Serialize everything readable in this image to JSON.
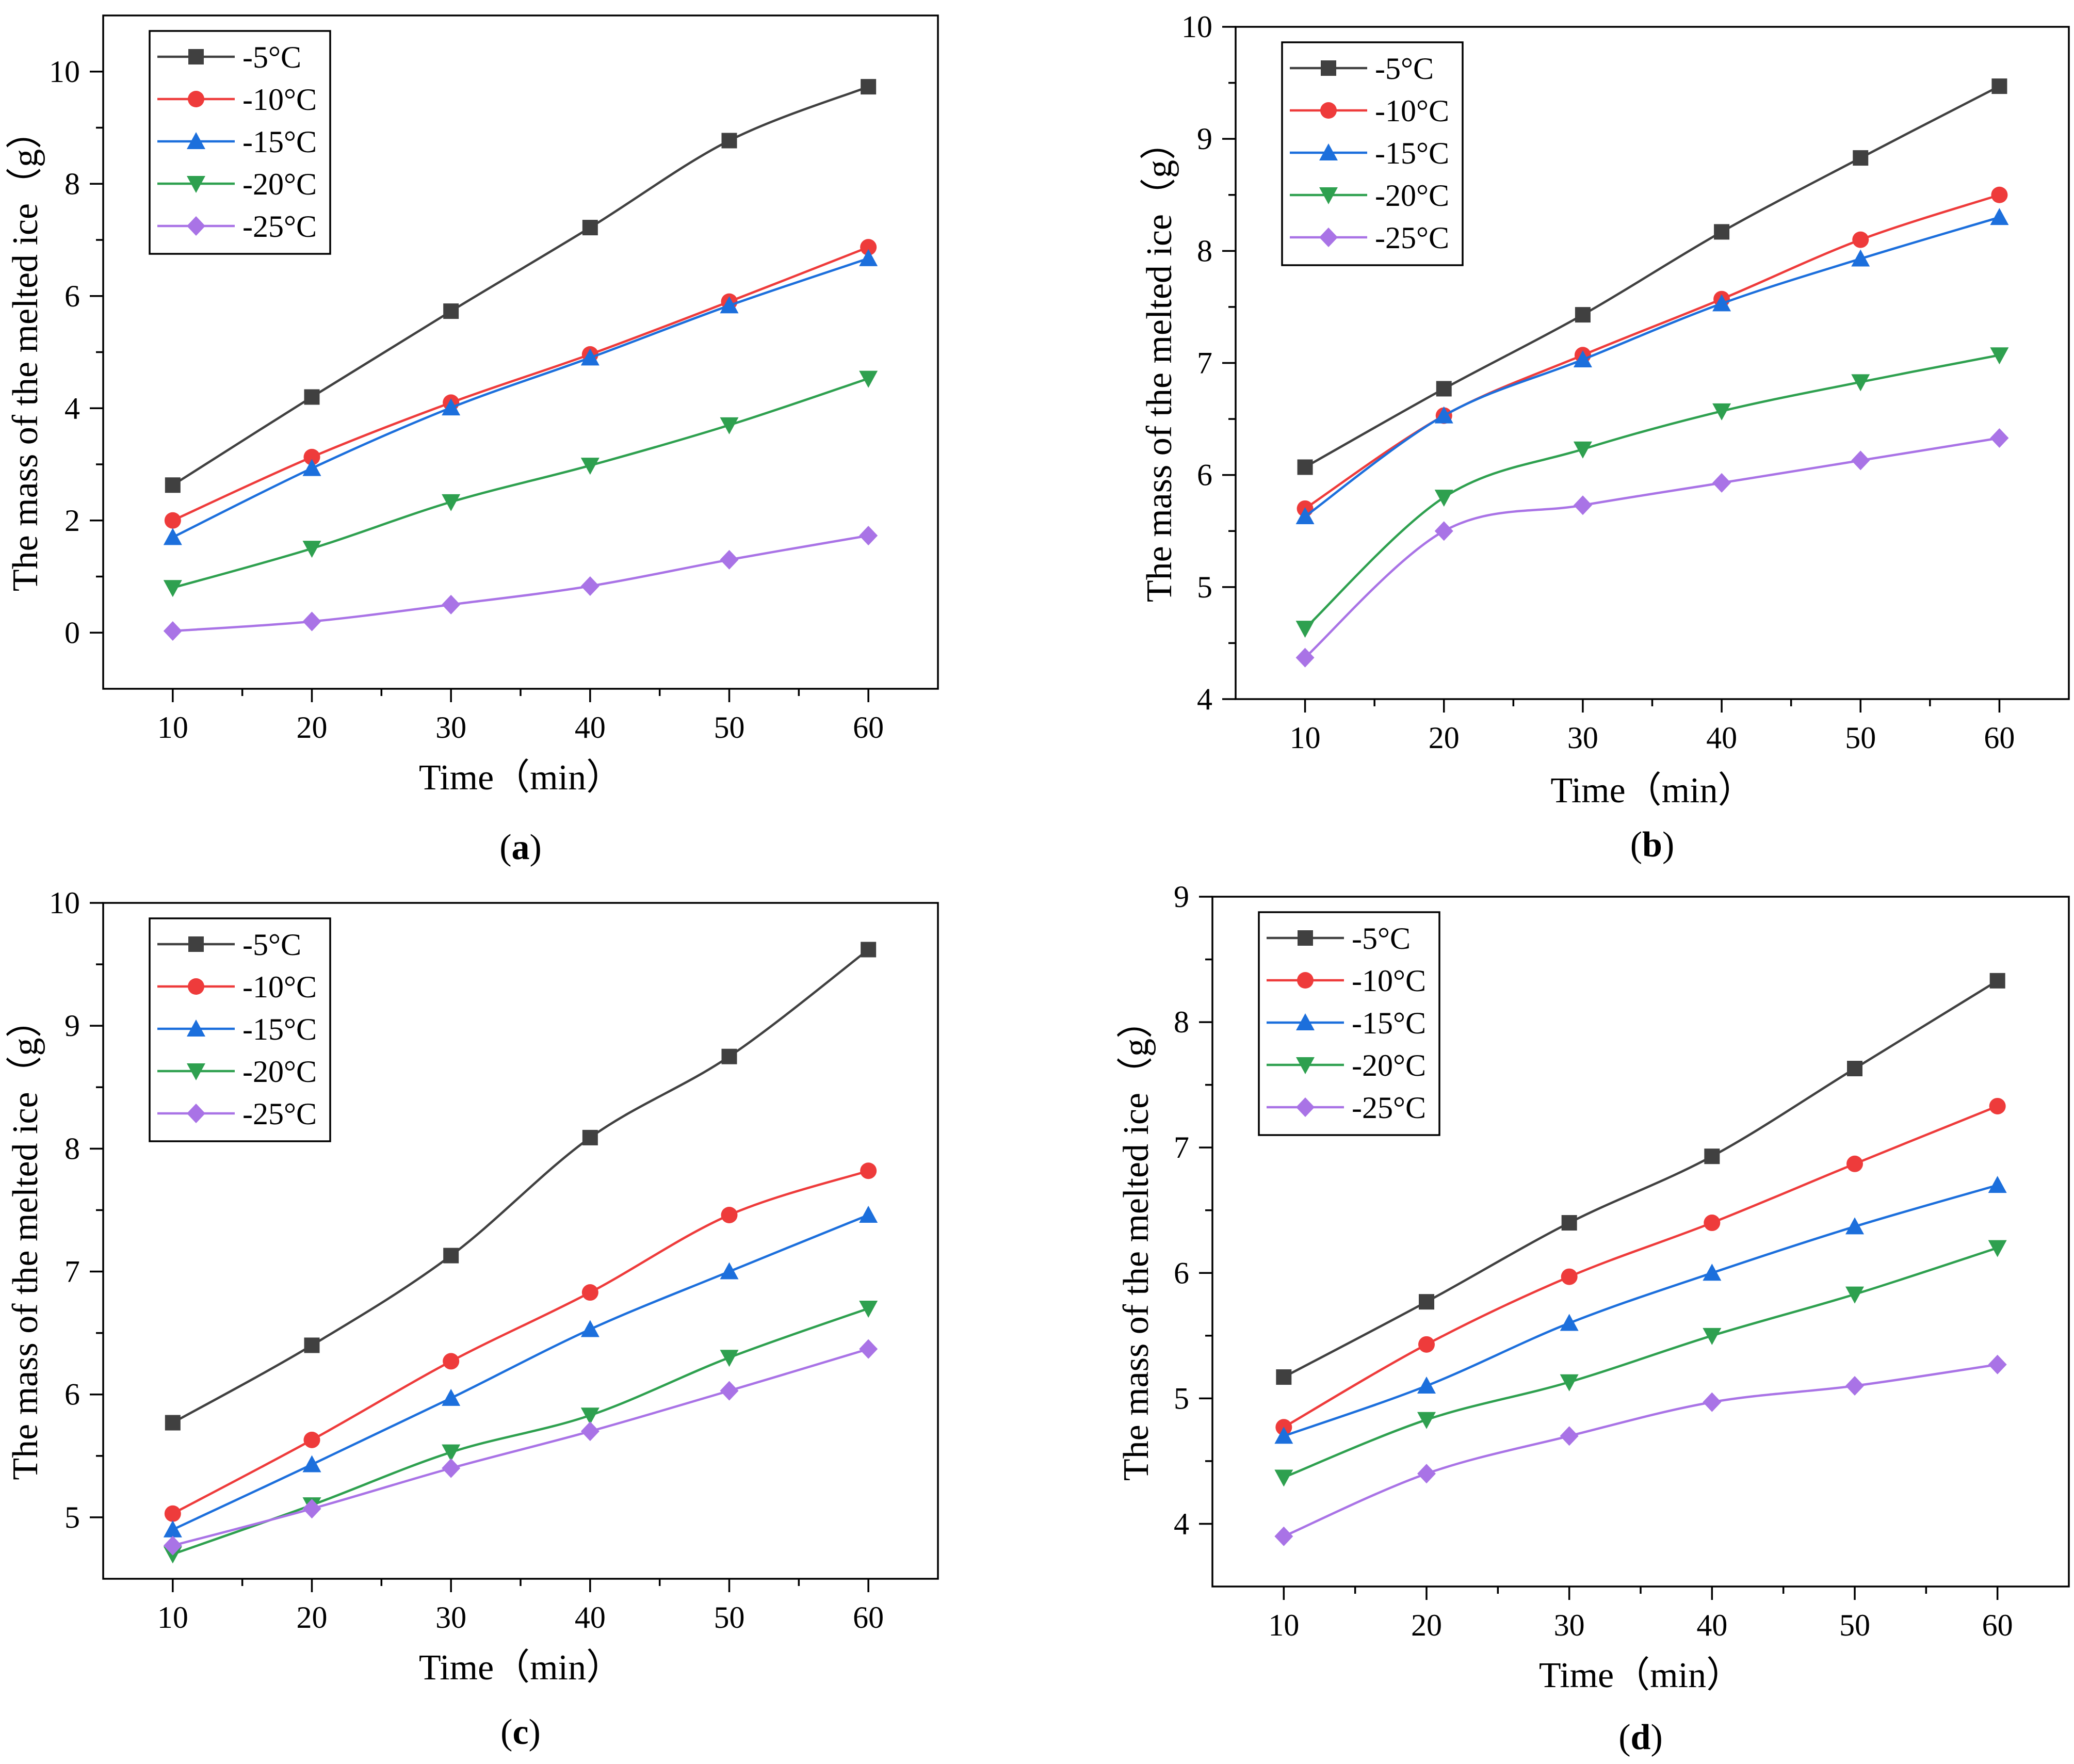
{
  "figure_title": "",
  "colors": {
    "-5°C": "#404040",
    "-10°C": "#ee3b3b",
    "-15°C": "#1c6fdc",
    "-20°C": "#2ea04f",
    "-25°C": "#a973e6"
  },
  "chart_data": [
    {
      "type": "line",
      "panel_label": "a",
      "xlabel": "Time（min）",
      "ylabel": "The  mass  of the melted ice（g）",
      "x": [
        10,
        20,
        30,
        40,
        50,
        60
      ],
      "xlim": [
        5,
        65
      ],
      "ylim": [
        -1,
        11
      ],
      "xticks": [
        10,
        20,
        30,
        40,
        50,
        60
      ],
      "yticks": [
        0,
        2,
        4,
        6,
        8,
        10
      ],
      "legend_position": "top-left",
      "series": [
        {
          "name": "-5°C",
          "marker": "square",
          "values": [
            2.63,
            4.2,
            5.73,
            7.22,
            8.77,
            9.73
          ]
        },
        {
          "name": "-10°C",
          "marker": "circle",
          "values": [
            2.0,
            3.13,
            4.1,
            4.96,
            5.9,
            6.87
          ]
        },
        {
          "name": "-15°C",
          "marker": "triangle-up",
          "values": [
            1.7,
            2.93,
            4.01,
            4.9,
            5.83,
            6.67
          ]
        },
        {
          "name": "-20°C",
          "marker": "triangle-down",
          "values": [
            0.8,
            1.5,
            2.33,
            2.98,
            3.7,
            4.53
          ]
        },
        {
          "name": "-25°C",
          "marker": "diamond",
          "values": [
            0.03,
            0.2,
            0.5,
            0.83,
            1.3,
            1.73
          ]
        }
      ]
    },
    {
      "type": "line",
      "panel_label": "b",
      "xlabel": "Time（min）",
      "ylabel": "The  mass  of the melted ice（g）",
      "x": [
        10,
        20,
        30,
        40,
        50,
        60
      ],
      "xlim": [
        5,
        65
      ],
      "ylim": [
        4,
        10
      ],
      "xticks": [
        10,
        20,
        30,
        40,
        50,
        60
      ],
      "yticks": [
        4,
        5,
        6,
        7,
        8,
        9,
        10
      ],
      "legend_position": "top-left",
      "series": [
        {
          "name": "-5°C",
          "marker": "square",
          "values": [
            6.07,
            6.77,
            7.43,
            8.17,
            8.83,
            9.47
          ]
        },
        {
          "name": "-10°C",
          "marker": "circle",
          "values": [
            5.7,
            6.53,
            7.07,
            7.57,
            8.1,
            8.5
          ]
        },
        {
          "name": "-15°C",
          "marker": "triangle-up",
          "values": [
            5.63,
            6.53,
            7.03,
            7.53,
            7.93,
            8.3
          ]
        },
        {
          "name": "-20°C",
          "marker": "triangle-down",
          "values": [
            4.63,
            5.8,
            6.23,
            6.57,
            6.83,
            7.07
          ]
        },
        {
          "name": "-25°C",
          "marker": "diamond",
          "values": [
            4.37,
            5.5,
            5.73,
            5.93,
            6.13,
            6.33
          ]
        }
      ]
    },
    {
      "type": "line",
      "panel_label": "c",
      "xlabel": "Time（min）",
      "ylabel": "The  mass  of the melted ice（g）",
      "x": [
        10,
        20,
        30,
        40,
        50,
        60
      ],
      "xlim": [
        5,
        65
      ],
      "ylim": [
        4.5,
        10
      ],
      "xticks": [
        10,
        20,
        30,
        40,
        50,
        60
      ],
      "yticks": [
        5,
        6,
        7,
        8,
        9,
        10
      ],
      "legend_position": "top-left",
      "series": [
        {
          "name": "-5°C",
          "marker": "square",
          "values": [
            5.77,
            6.4,
            7.13,
            8.09,
            8.75,
            9.62
          ]
        },
        {
          "name": "-10°C",
          "marker": "circle",
          "values": [
            5.03,
            5.63,
            6.27,
            6.83,
            7.46,
            7.82
          ]
        },
        {
          "name": "-15°C",
          "marker": "triangle-up",
          "values": [
            4.9,
            5.43,
            5.97,
            6.53,
            7.0,
            7.46
          ]
        },
        {
          "name": "-20°C",
          "marker": "triangle-down",
          "values": [
            4.7,
            5.1,
            5.53,
            5.83,
            6.3,
            6.7
          ]
        },
        {
          "name": "-25°C",
          "marker": "diamond",
          "values": [
            4.77,
            5.07,
            5.4,
            5.7,
            6.03,
            6.37
          ]
        }
      ]
    },
    {
      "type": "line",
      "panel_label": "d",
      "xlabel": "Time（min）",
      "ylabel": "The  mass  of the melted ice（g）",
      "x": [
        10,
        20,
        30,
        40,
        50,
        60
      ],
      "xlim": [
        5,
        65
      ],
      "ylim": [
        3.5,
        9
      ],
      "xticks": [
        10,
        20,
        30,
        40,
        50,
        60
      ],
      "yticks": [
        4,
        5,
        6,
        7,
        8,
        9
      ],
      "legend_position": "top-left",
      "series": [
        {
          "name": "-5°C",
          "marker": "square",
          "values": [
            5.17,
            5.77,
            6.4,
            6.93,
            7.63,
            8.33
          ]
        },
        {
          "name": "-10°C",
          "marker": "circle",
          "values": [
            4.77,
            5.43,
            5.97,
            6.4,
            6.87,
            7.33
          ]
        },
        {
          "name": "-15°C",
          "marker": "triangle-up",
          "values": [
            4.7,
            5.1,
            5.6,
            6.0,
            6.37,
            6.7
          ]
        },
        {
          "name": "-20°C",
          "marker": "triangle-down",
          "values": [
            4.37,
            4.83,
            5.13,
            5.5,
            5.83,
            6.2
          ]
        },
        {
          "name": "-25°C",
          "marker": "diamond",
          "values": [
            3.9,
            4.4,
            4.7,
            4.97,
            5.1,
            5.27
          ]
        }
      ]
    }
  ]
}
